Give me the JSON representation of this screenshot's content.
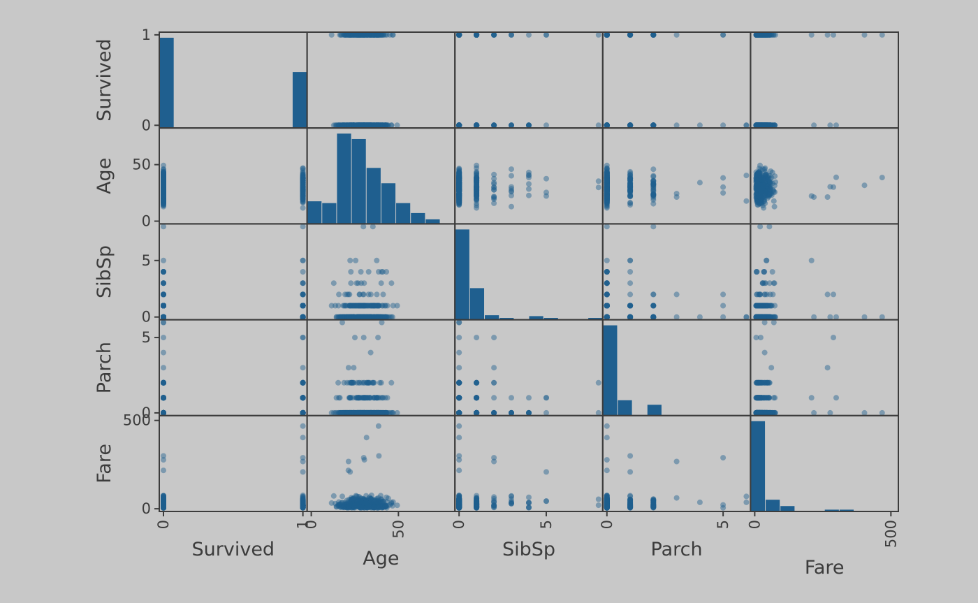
{
  "chart_data": {
    "type": "scatter",
    "subtype": "scatter-matrix",
    "variables": [
      "Survived",
      "Age",
      "SibSp",
      "Parch",
      "Fare"
    ],
    "ranges": {
      "Survived": [
        0,
        1
      ],
      "Age": [
        0,
        80
      ],
      "SibSp": [
        0,
        8
      ],
      "Parch": [
        0,
        6
      ],
      "Fare": [
        0,
        512
      ]
    },
    "ticks": {
      "Survived": [
        {
          "v": 0,
          "label": "0"
        },
        {
          "v": 1,
          "label": "1"
        }
      ],
      "Age": [
        {
          "v": 0,
          "label": "0"
        },
        {
          "v": 50,
          "label": "50"
        }
      ],
      "SibSp": [
        {
          "v": 0,
          "label": "0"
        },
        {
          "v": 5,
          "label": "5"
        }
      ],
      "Parch": [
        {
          "v": 0,
          "label": "0"
        },
        {
          "v": 5,
          "label": "5"
        }
      ],
      "Fare": [
        {
          "v": 0,
          "label": "0"
        },
        {
          "v": 500,
          "label": "500"
        }
      ]
    },
    "diagonal": "histogram",
    "histograms": {
      "Survived": [
        1.0,
        0,
        0,
        0,
        0,
        0,
        0,
        0,
        0,
        0.62
      ],
      "Age": [
        0.25,
        0.23,
        1.0,
        0.94,
        0.62,
        0.45,
        0.23,
        0.12,
        0.05,
        0.0
      ],
      "SibSp": [
        1.0,
        0.35,
        0.05,
        0.02,
        0.0,
        0.04,
        0.02,
        0.0,
        0.0,
        0.02
      ],
      "Parch": [
        1.0,
        0.17,
        0.0,
        0.12,
        0.0,
        0.0,
        0.0,
        0.0,
        0.0,
        0.0
      ],
      "Fare": [
        1.0,
        0.13,
        0.06,
        0.0,
        0.0,
        0.02,
        0.02,
        0.0,
        0.0,
        0.0
      ]
    },
    "grid": false,
    "colors": {
      "marker": "#1f5f8f",
      "bar": "#1f5f8f",
      "background": "#c8c8c8",
      "axes": "#3c3c3c"
    }
  }
}
